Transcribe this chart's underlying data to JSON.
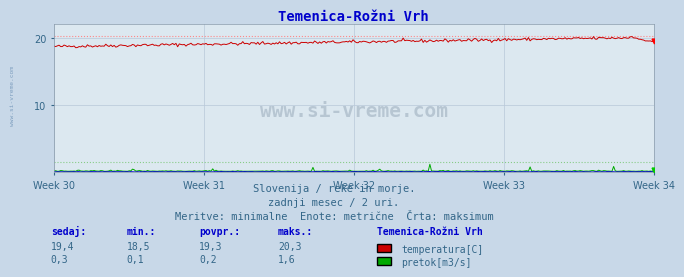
{
  "title": "Temenica-Rožni Vrh",
  "title_color": "#0000cc",
  "title_fontsize": 10,
  "fig_bg_color": "#c8d8e8",
  "plot_bg_color": "#dce8f0",
  "x_weeks": [
    "Week 30",
    "Week 31",
    "Week 32",
    "Week 33",
    "Week 34"
  ],
  "n_points": 360,
  "ylim": [
    0,
    22
  ],
  "yticks": [
    10,
    20
  ],
  "temp_min": 18.5,
  "temp_max": 20.3,
  "temp_avg": 19.3,
  "temp_current": 19.4,
  "flow_min": 0.1,
  "flow_max": 1.6,
  "flow_avg": 0.2,
  "flow_current": 0.3,
  "temp_color": "#cc0000",
  "flow_color": "#00aa00",
  "level_color": "#0000cc",
  "hline_temp_max_color": "#ff8888",
  "hline_flow_max_color": "#88cc88",
  "grid_color": "#b8c8d8",
  "axis_color": "#8899aa",
  "tick_color": "#336688",
  "watermark": "www.si-vreme.com",
  "watermark_color": "#99aabb",
  "subtitle_lines": [
    "Slovenija / reke in morje.",
    "zadnji mesec / 2 uri.",
    "Meritve: minimalne  Enote: metrične  Črta: maksimum"
  ],
  "subtitle_color": "#336688",
  "subtitle_fontsize": 7.5,
  "table_header": [
    "sedaj:",
    "min.:",
    "povpr.:",
    "maks.:"
  ],
  "table_header_color": "#0000cc",
  "table_values_temp": [
    "19,4",
    "18,5",
    "19,3",
    "20,3"
  ],
  "table_values_flow": [
    "0,3",
    "0,1",
    "0,2",
    "1,6"
  ],
  "legend_title": "Temenica-Rožni Vrh",
  "legend_entries": [
    "temperatura[C]",
    "pretok[m3/s]"
  ],
  "legend_colors": [
    "#cc0000",
    "#00aa00"
  ],
  "sidebar_text": "www.si-vreme.com",
  "sidebar_color": "#7799bb"
}
